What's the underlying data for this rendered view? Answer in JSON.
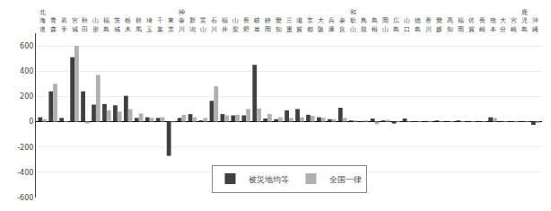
{
  "chart_data": {
    "type": "bar",
    "categories": [
      "北海道",
      "青森",
      "岩手",
      "宮城",
      "秋田",
      "山形",
      "福島",
      "茨城",
      "栃木",
      "群馬",
      "埼玉",
      "千葉",
      "東京",
      "神奈川",
      "新潟",
      "富山",
      "石川",
      "福井",
      "山梨",
      "長野",
      "岐阜",
      "静岡",
      "愛知",
      "三重",
      "滋賀",
      "京都",
      "大阪",
      "兵庫",
      "奈良",
      "和歌山",
      "鳥取",
      "島根",
      "岡山",
      "広島",
      "山口",
      "徳島",
      "香川",
      "愛媛",
      "高知",
      "福岡",
      "佐賀",
      "長崎",
      "熊本",
      "大分",
      "宮崎",
      "鹿児島",
      "沖縄"
    ],
    "series": [
      {
        "name": "被災地均等",
        "color": "#404040",
        "values": [
          35,
          240,
          30,
          510,
          240,
          135,
          140,
          130,
          205,
          30,
          35,
          30,
          -270,
          30,
          60,
          10,
          165,
          60,
          50,
          50,
          450,
          25,
          20,
          90,
          100,
          55,
          35,
          20,
          110,
          10,
          5,
          25,
          10,
          -15,
          25,
          5,
          5,
          10,
          5,
          10,
          5,
          5,
          35,
          5,
          5,
          5,
          -25
        ]
      },
      {
        "name": "全国一律",
        "color": "#b0b0b0",
        "values": [
          20,
          300,
          5,
          600,
          -15,
          370,
          90,
          80,
          100,
          65,
          30,
          35,
          -5,
          55,
          35,
          30,
          280,
          50,
          55,
          100,
          105,
          60,
          35,
          30,
          35,
          45,
          30,
          20,
          30,
          10,
          10,
          -20,
          15,
          5,
          5,
          5,
          5,
          5,
          5,
          5,
          5,
          5,
          30,
          5,
          5,
          5,
          -10
        ]
      }
    ],
    "ylim": [
      -600,
      700
    ],
    "yticks": [
      -600,
      -400,
      -200,
      0,
      200,
      400,
      600
    ],
    "grid": true,
    "legend": "lower center"
  }
}
